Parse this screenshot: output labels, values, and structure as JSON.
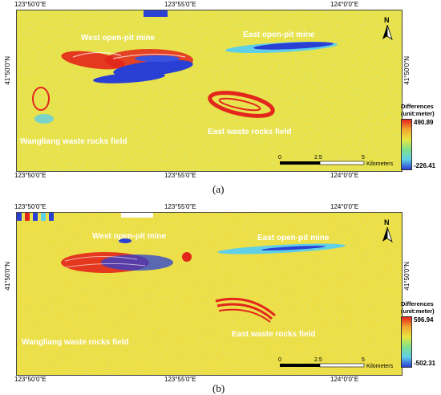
{
  "panels": [
    {
      "label": "(a)",
      "legend": {
        "title_line1": "Differences",
        "title_line2": "(unit:meter)",
        "max": "490.89",
        "min": "-226.41"
      },
      "top_ticks": [
        "123°50'0\"E",
        "123°55'0\"E",
        "124°0'0\"E"
      ],
      "bottom_ticks": [
        "123°50'0\"E",
        "123°55'0\"E",
        "124°0'0\"E"
      ],
      "left_tick": "41°50'0\"N",
      "right_tick": "41°50'0\"N",
      "places": {
        "west_mine": "West open-pit mine",
        "east_mine": "East open-pit mine",
        "east_waste": "East waste rocks field",
        "wangliang": "Wangliang waste rocks field"
      },
      "scale": {
        "zero": "0",
        "mid": "2.5",
        "end": "5",
        "unit": "Kilometers"
      },
      "north": "N"
    },
    {
      "label": "(b)",
      "legend": {
        "title_line1": "Differences",
        "title_line2": "(unit:meter)",
        "max": "596.94",
        "min": "-502.31"
      },
      "top_ticks": [
        "123°50'0\"E",
        "123°55'0\"E",
        "124°0'0\"E"
      ],
      "bottom_ticks": [
        "123°50'0\"E",
        "123°55'0\"E",
        "124°0'0\"E"
      ],
      "left_tick": "41°50'0\"N",
      "right_tick": "41°50'0\"N",
      "places": {
        "west_mine": "West open-pit mine",
        "east_mine": "East open-pit mine",
        "east_waste": "East waste rocks field",
        "wangliang": "Wangliang waste rocks field"
      },
      "scale": {
        "zero": "0",
        "mid": "2.5",
        "end": "5",
        "unit": "Kilometers"
      },
      "north": "N"
    }
  ],
  "colors": {
    "background_yellow": "#e9e641",
    "high_red": "#e3261b",
    "low_blue": "#2a3fd4",
    "cyan": "#5fd0e6",
    "orange": "#f2a830"
  }
}
